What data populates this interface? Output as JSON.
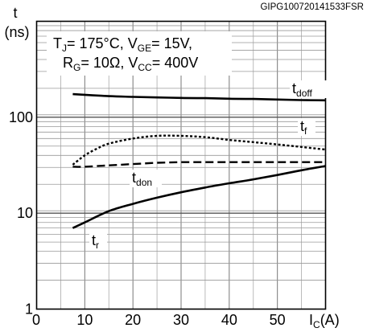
{
  "chart_data": {
    "type": "line",
    "reference_id": "GIPG100720141533FSR",
    "y_unit_top": "t",
    "y_unit_bottom": "(ns)",
    "x_unit_label": "I",
    "x_unit_sub": "C",
    "x_unit_suffix": "(A)",
    "x_axis": {
      "min": 0,
      "max": 60,
      "ticks": [
        0,
        10,
        20,
        30,
        40,
        50
      ]
    },
    "y_axis": {
      "scale": "log",
      "min": 1,
      "max": 1000,
      "ticks": [
        1,
        10,
        100
      ]
    },
    "grid": true,
    "conditions": {
      "line1": [
        {
          "text": "T",
          "sub": false
        },
        {
          "text": "J",
          "sub": true
        },
        {
          "text": "= 175°C, V",
          "sub": false
        },
        {
          "text": "GE",
          "sub": true
        },
        {
          "text": "= 15V,",
          "sub": false
        }
      ],
      "line2": [
        {
          "text": "R",
          "sub": false
        },
        {
          "text": "G",
          "sub": true
        },
        {
          "text": "= 10Ω, V",
          "sub": false
        },
        {
          "text": "CC",
          "sub": true
        },
        {
          "text": "= 400V",
          "sub": false
        }
      ]
    },
    "series": [
      {
        "name": "doff",
        "label_main": "t",
        "label_sub": "doff",
        "style": "solid",
        "x": [
          7.5,
          15,
          20,
          25,
          30,
          35,
          40,
          45,
          50,
          55,
          60
        ],
        "y": [
          174,
          166,
          163,
          161,
          159,
          158,
          156,
          155,
          153,
          151,
          150
        ]
      },
      {
        "name": "f",
        "label_main": "t",
        "label_sub": "f",
        "style": "dotted",
        "x": [
          7.5,
          10,
          12.5,
          15,
          20,
          25,
          30,
          35,
          40,
          45,
          50,
          55,
          60
        ],
        "y": [
          32,
          40,
          47,
          53,
          60,
          64,
          64,
          62,
          58,
          55,
          52,
          49,
          46
        ]
      },
      {
        "name": "don",
        "label_main": "t",
        "label_sub": "don",
        "style": "dashed",
        "x": [
          7.5,
          10,
          15,
          20,
          25,
          30,
          35,
          40,
          45,
          50,
          55,
          60
        ],
        "y": [
          30.5,
          30.5,
          31.5,
          32.5,
          33.5,
          34,
          34,
          34,
          34,
          34,
          34,
          34
        ]
      },
      {
        "name": "r",
        "label_main": "t",
        "label_sub": "r",
        "style": "solid",
        "x": [
          7.5,
          10,
          15,
          20,
          25,
          30,
          35,
          40,
          45,
          50,
          55,
          60
        ],
        "y": [
          7,
          8,
          10.5,
          12.5,
          14.5,
          16.5,
          18.5,
          20.5,
          22.5,
          25,
          28,
          31
        ]
      }
    ]
  }
}
